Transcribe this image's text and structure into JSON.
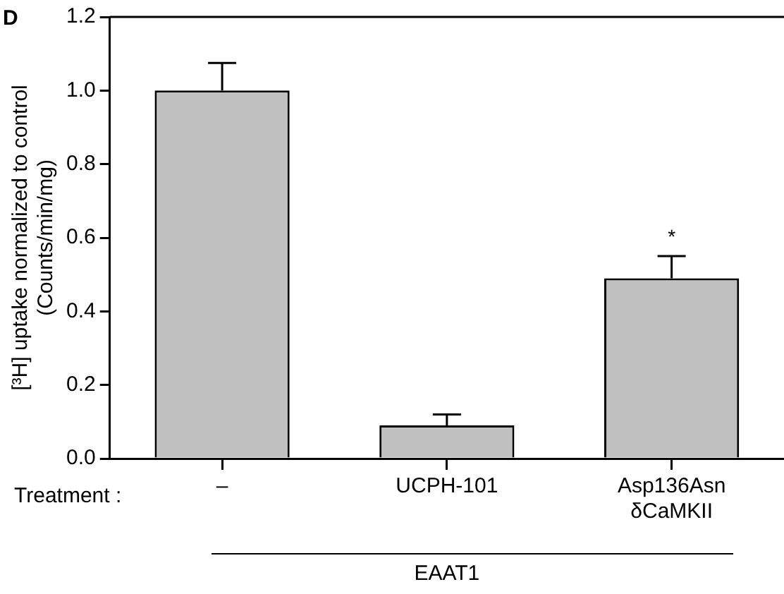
{
  "chart_data": {
    "type": "bar",
    "ylabel": "[³H] uptake normalized to control\n(Counts/min/mg)",
    "categories": [
      "–",
      "UCPH-101",
      "Asp136Asn\nδCaMKII"
    ],
    "values": [
      1.0,
      0.09,
      0.49
    ],
    "errors": [
      0.075,
      0.03,
      0.06
    ],
    "color": "#c0c0c0",
    "ylim": [
      0,
      1.2
    ],
    "yticks": [
      {
        "value": 0,
        "label": "0.0"
      },
      0.2,
      0.4,
      0.6,
      0.8,
      {
        "value": 1,
        "label": "1.0"
      },
      1.2
    ],
    "grid": false,
    "legend": false,
    "annotations": [
      "D",
      "Treatment :",
      "EAAT1",
      "*"
    ]
  }
}
